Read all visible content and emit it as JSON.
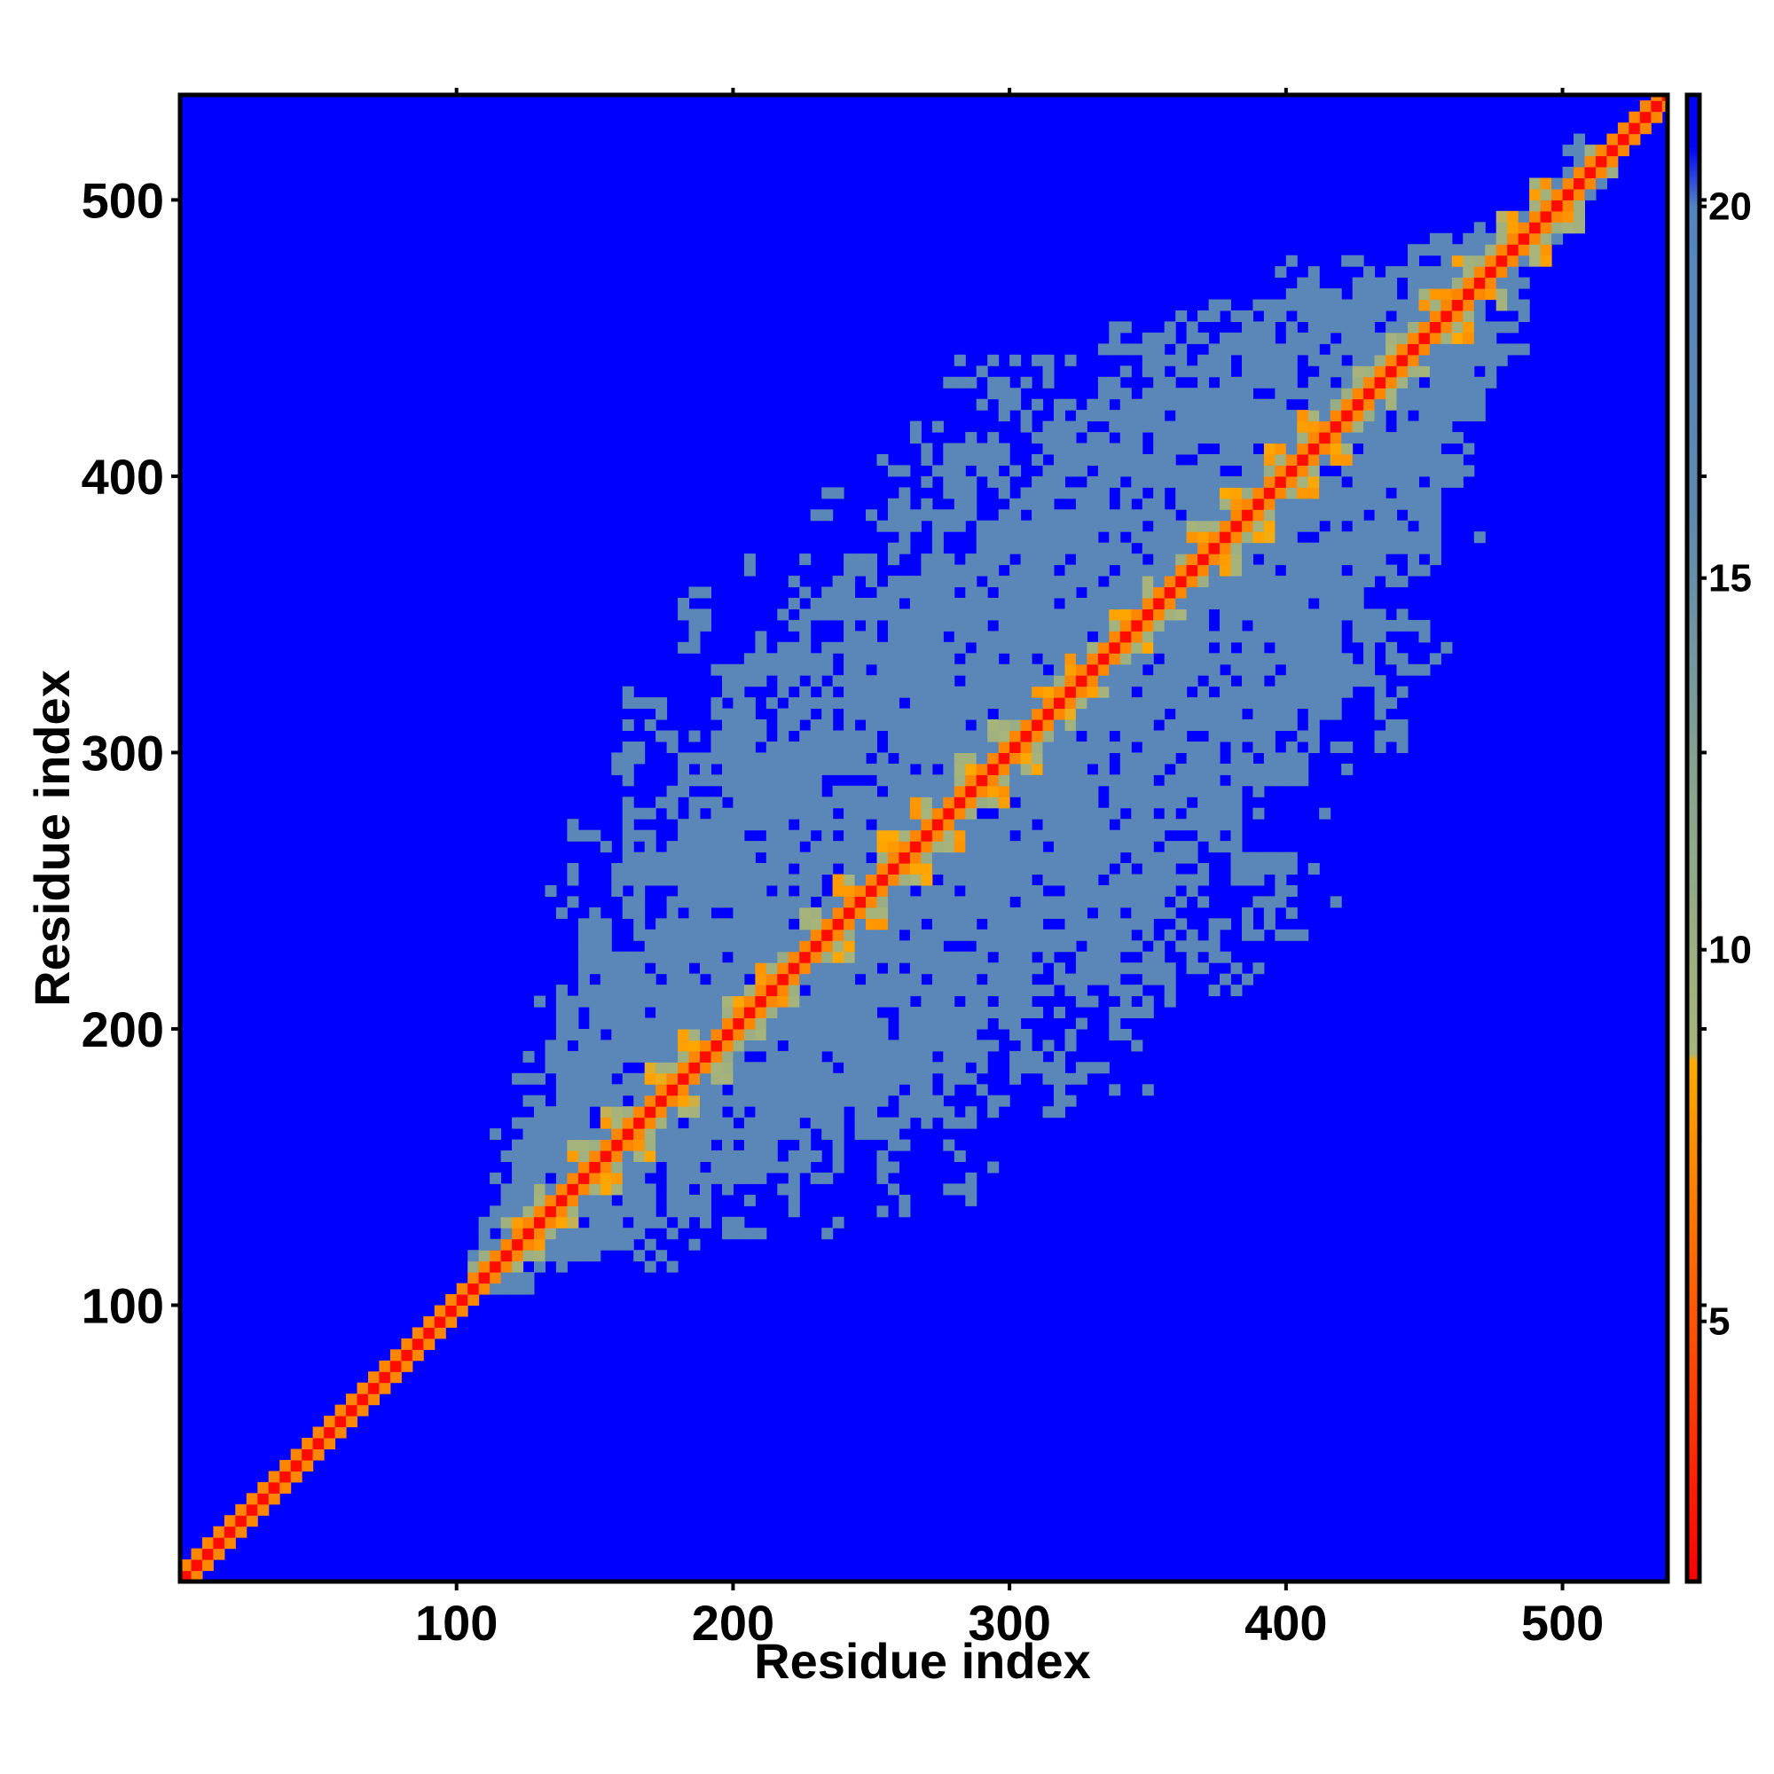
{
  "chart_data": {
    "type": "heatmap",
    "title": "",
    "xlabel": "Residue index",
    "ylabel": "Residue index",
    "xlim": [
      0,
      538
    ],
    "ylim": [
      0,
      538
    ],
    "x_ticks": [
      100,
      200,
      300,
      400,
      500
    ],
    "y_ticks": [
      100,
      200,
      300,
      400,
      500
    ],
    "colorbar": {
      "range": [
        1.5,
        21.5
      ],
      "ticks": [
        5,
        10,
        15,
        20
      ],
      "stops": [
        {
          "value": 1.5,
          "color": "#ff0000"
        },
        {
          "value": 5,
          "color": "#ff5500"
        },
        {
          "value": 8.5,
          "color": "#ffaa00"
        },
        {
          "value": 8.6,
          "color": "#a8b47a"
        },
        {
          "value": 12,
          "color": "#8aa58e"
        },
        {
          "value": 16,
          "color": "#5e88b0"
        },
        {
          "value": 20,
          "color": "#5585c0"
        },
        {
          "value": 20.8,
          "color": "#0000ff"
        },
        {
          "value": 21.5,
          "color": "#0000ff"
        }
      ]
    },
    "background_value": 21.5,
    "diagonal_value": 2,
    "near_diagonal_value": 7,
    "contact_region": {
      "start": 110,
      "end": 515,
      "max_halfwidth": 105,
      "value": 18
    },
    "hotspots_along_diagonal": [
      130,
      156,
      184,
      210,
      240,
      268,
      296,
      322,
      350,
      380,
      408,
      438,
      465,
      492
    ]
  }
}
